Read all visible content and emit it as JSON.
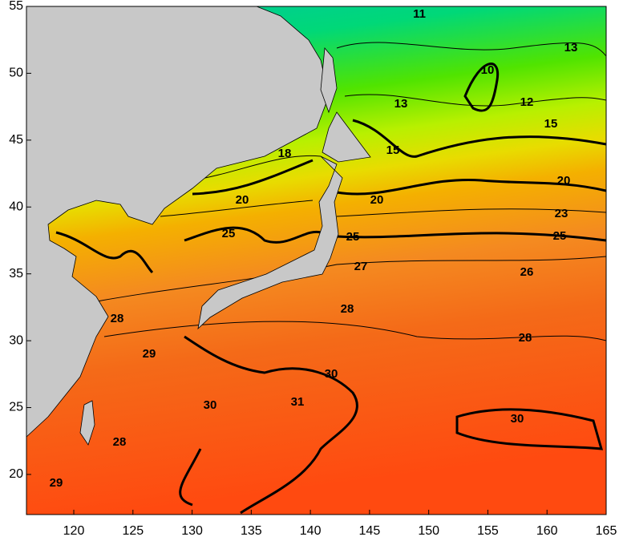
{
  "chart_data": {
    "type": "map",
    "xlim": [
      116,
      165
    ],
    "ylim": [
      17,
      55
    ],
    "xticks": [
      120,
      125,
      130,
      135,
      140,
      145,
      150,
      155,
      160,
      165
    ],
    "yticks": [
      20,
      25,
      30,
      35,
      40,
      45,
      50,
      55
    ],
    "contour_labels": [
      11,
      13,
      10,
      13,
      12,
      15,
      15,
      18,
      20,
      20,
      20,
      23,
      25,
      25,
      25,
      27,
      26,
      28,
      28,
      28,
      29,
      30,
      31,
      30,
      30,
      28,
      29
    ]
  }
}
